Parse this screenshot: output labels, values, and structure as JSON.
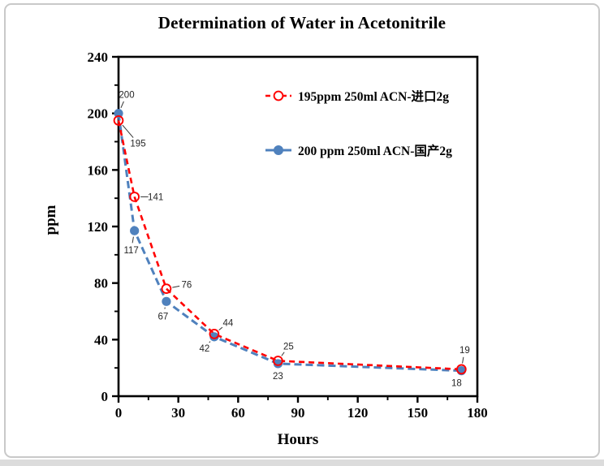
{
  "window": {
    "background": "#ffffff",
    "card_border": "#c9c9c9",
    "bottom_strip": "#dcdcdc"
  },
  "chart_data": {
    "type": "line",
    "title": "Determination of Water in Acetonitrile",
    "xlabel": "Hours",
    "ylabel": "ppm",
    "xlim": [
      0,
      180
    ],
    "ylim": [
      0,
      240
    ],
    "x_major_ticks": [
      0,
      30,
      60,
      90,
      120,
      150,
      180
    ],
    "x_minor_ticks": [
      15,
      45,
      75,
      105,
      135,
      165
    ],
    "y_major_ticks": [
      0,
      40,
      80,
      120,
      160,
      200,
      240
    ],
    "y_minor_ticks": [
      20,
      60,
      100,
      140,
      180,
      220
    ],
    "grid": false,
    "legend_position": "inside-top-center",
    "axis_color": "#000000",
    "annotation_color": "#262626",
    "series": [
      {
        "name": "195ppm  250ml ACN-进口2g",
        "color": "#ff0000",
        "line": "dashed",
        "marker": "open-circle",
        "points": [
          {
            "x": 0,
            "y": 195,
            "label": "195",
            "label_dx": 24,
            "label_dy": 28
          },
          {
            "x": 8,
            "y": 141,
            "label": "141",
            "label_dx": 26,
            "label_dy": 0
          },
          {
            "x": 24,
            "y": 76,
            "label": "76",
            "label_dx": 25,
            "label_dy": -5
          },
          {
            "x": 48,
            "y": 44,
            "label": "44",
            "label_dx": 17,
            "label_dy": -14
          },
          {
            "x": 80,
            "y": 25,
            "label": "25",
            "label_dx": 13,
            "label_dy": -18
          },
          {
            "x": 172,
            "y": 19,
            "label": "19",
            "label_dx": 4,
            "label_dy": -24
          }
        ]
      },
      {
        "name": "200 ppm 250ml ACN-国产2g",
        "color": "#4f81bd",
        "line": "dashed",
        "legend_line": "solid",
        "marker": "filled-circle",
        "points": [
          {
            "x": 0,
            "y": 200,
            "label": "200",
            "label_dx": 10,
            "label_dy": -23
          },
          {
            "x": 8,
            "y": 117,
            "label": "117",
            "label_dx": -4,
            "label_dy": 24
          },
          {
            "x": 24,
            "y": 67,
            "label": "67",
            "label_dx": -4,
            "label_dy": 18
          },
          {
            "x": 48,
            "y": 42,
            "label": "42",
            "label_dx": -12,
            "label_dy": 14
          },
          {
            "x": 80,
            "y": 23,
            "label": "23",
            "label_dx": 0,
            "label_dy": 15
          },
          {
            "x": 172,
            "y": 18,
            "label": "18",
            "label_dx": -6,
            "label_dy": 15
          }
        ]
      }
    ]
  }
}
